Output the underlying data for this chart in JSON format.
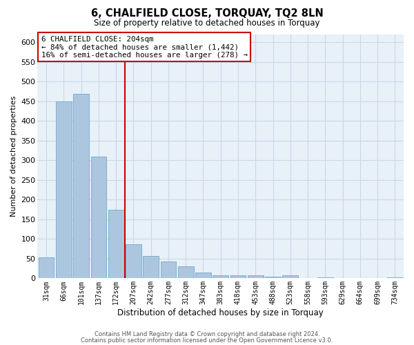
{
  "title": "6, CHALFIELD CLOSE, TORQUAY, TQ2 8LN",
  "subtitle": "Size of property relative to detached houses in Torquay",
  "xlabel": "Distribution of detached houses by size in Torquay",
  "ylabel": "Number of detached properties",
  "categories": [
    "31sqm",
    "66sqm",
    "101sqm",
    "137sqm",
    "172sqm",
    "207sqm",
    "242sqm",
    "277sqm",
    "312sqm",
    "347sqm",
    "383sqm",
    "418sqm",
    "453sqm",
    "488sqm",
    "523sqm",
    "558sqm",
    "593sqm",
    "629sqm",
    "664sqm",
    "699sqm",
    "734sqm"
  ],
  "values": [
    53,
    450,
    470,
    310,
    175,
    87,
    57,
    42,
    30,
    14,
    8,
    7,
    8,
    5,
    8,
    0,
    3,
    0,
    0,
    0,
    3
  ],
  "bar_color": "#adc6e0",
  "bar_edge_color": "#6fa8c8",
  "grid_color": "#c8d8e8",
  "background_color": "#e8f0f8",
  "property_line_x": 4.5,
  "property_line_color": "#cc0000",
  "annotation_line1": "6 CHALFIELD CLOSE: 204sqm",
  "annotation_line2": "← 84% of detached houses are smaller (1,442)",
  "annotation_line3": "16% of semi-detached houses are larger (278) →",
  "annotation_box_color": "#cc0000",
  "footer_line1": "Contains HM Land Registry data © Crown copyright and database right 2024.",
  "footer_line2": "Contains public sector information licensed under the Open Government Licence v3.0.",
  "ylim": [
    0,
    620
  ],
  "yticks": [
    0,
    50,
    100,
    150,
    200,
    250,
    300,
    350,
    400,
    450,
    500,
    550,
    600
  ]
}
